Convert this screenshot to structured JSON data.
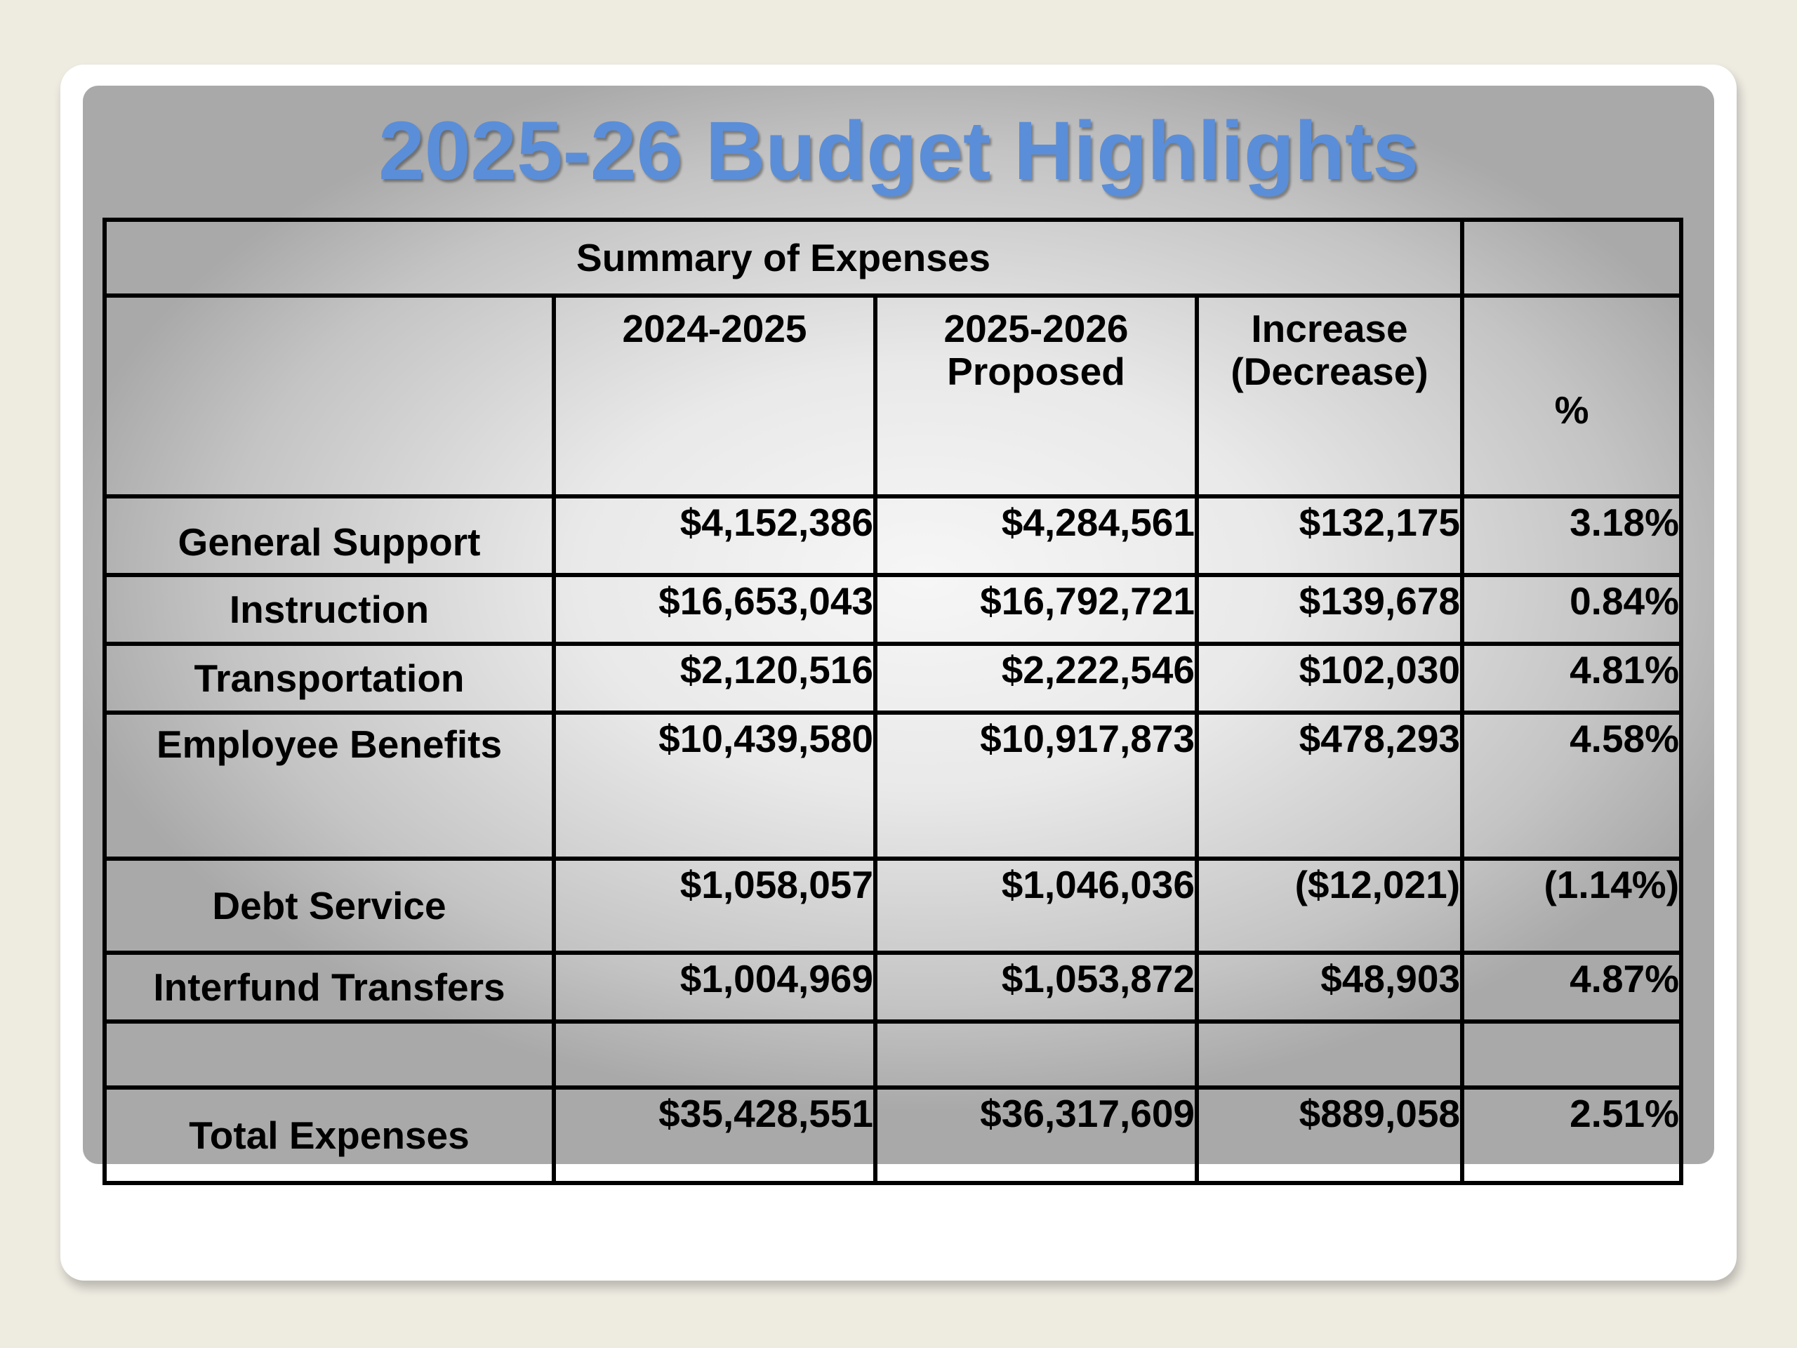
{
  "title": "2025-26 Budget Highlights",
  "table": {
    "caption": "Summary of Expenses",
    "headers": {
      "col1": "2024-2025",
      "col2_line1": "2025-2026",
      "col2_line2": "Proposed",
      "col3_line1": "Increase",
      "col3_line2": "(Decrease)",
      "col4": "%"
    },
    "rows": [
      {
        "label": "General Support",
        "y2024": "$4,152,386",
        "y2025": "$4,284,561",
        "change": "$132,175",
        "pct": "3.18%"
      },
      {
        "label": "Instruction",
        "y2024": "$16,653,043",
        "y2025": "$16,792,721",
        "change": "$139,678",
        "pct": "0.84%"
      },
      {
        "label": "Transportation",
        "y2024": "$2,120,516",
        "y2025": "$2,222,546",
        "change": "$102,030",
        "pct": "4.81%"
      },
      {
        "label": "Employee Benefits",
        "y2024": "$10,439,580",
        "y2025": "$10,917,873",
        "change": "$478,293",
        "pct": "4.58%"
      },
      {
        "label": "Debt Service",
        "y2024": "$1,058,057",
        "y2025": "$1,046,036",
        "change": "($12,021)",
        "pct": "(1.14%)"
      },
      {
        "label": "Interfund Transfers",
        "y2024": "$1,004,969",
        "y2025": "$1,053,872",
        "change": "$48,903",
        "pct": "4.87%"
      }
    ],
    "total": {
      "label": "Total Expenses",
      "y2024": "$35,428,551",
      "y2025": "$36,317,609",
      "change": "$889,058",
      "pct": "2.51%"
    }
  },
  "colors": {
    "title": "#5b8ed8",
    "background": "#eeebe1",
    "card": "#ffffff",
    "border": "#000000"
  }
}
